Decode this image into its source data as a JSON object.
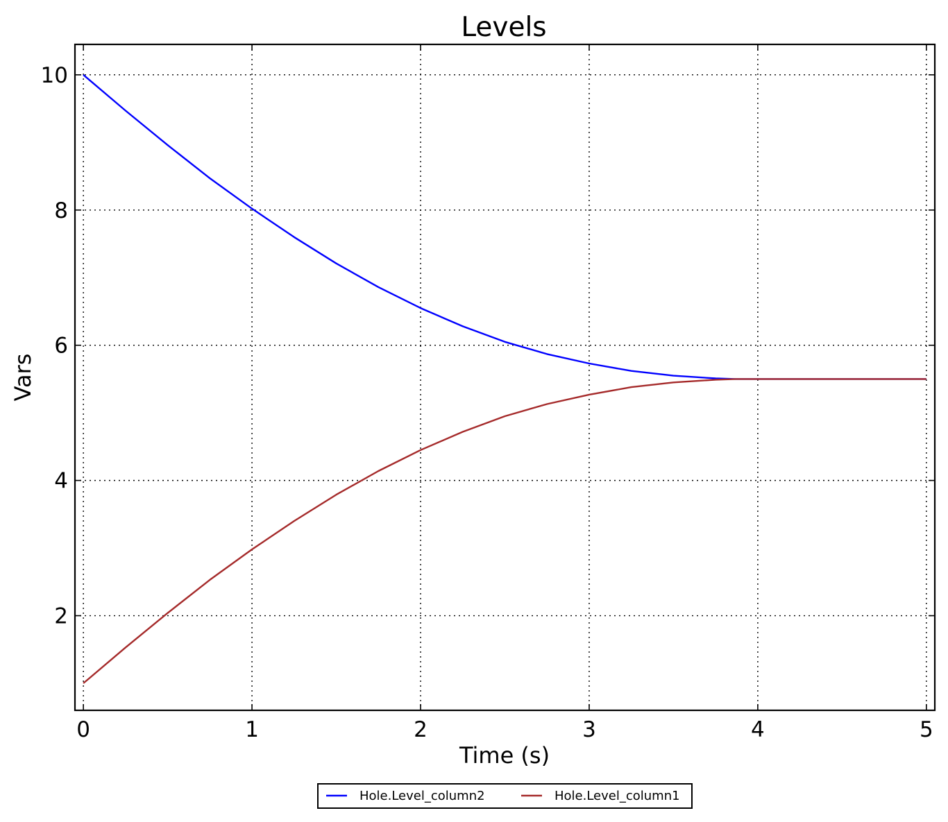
{
  "chart_data": {
    "type": "line",
    "title": "Levels",
    "xlabel": "Time (s)",
    "ylabel": "Vars",
    "xlim": [
      -0.05,
      5.05
    ],
    "ylim": [
      0.6,
      10.45
    ],
    "xticks": [
      0,
      1,
      2,
      3,
      4,
      5
    ],
    "yticks": [
      2,
      4,
      6,
      8,
      10
    ],
    "xtick_labels": [
      "0",
      "1",
      "2",
      "3",
      "4",
      "5"
    ],
    "ytick_labels": [
      "2",
      "4",
      "6",
      "8",
      "10"
    ],
    "grid": true,
    "legend_position": "bottom-center",
    "x": [
      0,
      0.25,
      0.5,
      0.75,
      1.0,
      1.25,
      1.5,
      1.75,
      2.0,
      2.25,
      2.5,
      2.75,
      3.0,
      3.25,
      3.5,
      3.75,
      3.87,
      4.0,
      4.25,
      4.5,
      4.75,
      5.0
    ],
    "series": [
      {
        "name": "Hole.Level_column2",
        "color": "#0000ff",
        "values": [
          10.0,
          9.47,
          8.96,
          8.47,
          8.02,
          7.6,
          7.21,
          6.86,
          6.55,
          6.28,
          6.05,
          5.87,
          5.73,
          5.62,
          5.55,
          5.51,
          5.5,
          5.5,
          5.5,
          5.5,
          5.5,
          5.5
        ]
      },
      {
        "name": "Hole.Level_column1",
        "color": "#a52a2a",
        "values": [
          1.0,
          1.53,
          2.04,
          2.53,
          2.98,
          3.4,
          3.79,
          4.14,
          4.45,
          4.72,
          4.95,
          5.13,
          5.27,
          5.38,
          5.45,
          5.49,
          5.5,
          5.5,
          5.5,
          5.5,
          5.5,
          5.5
        ]
      }
    ]
  }
}
